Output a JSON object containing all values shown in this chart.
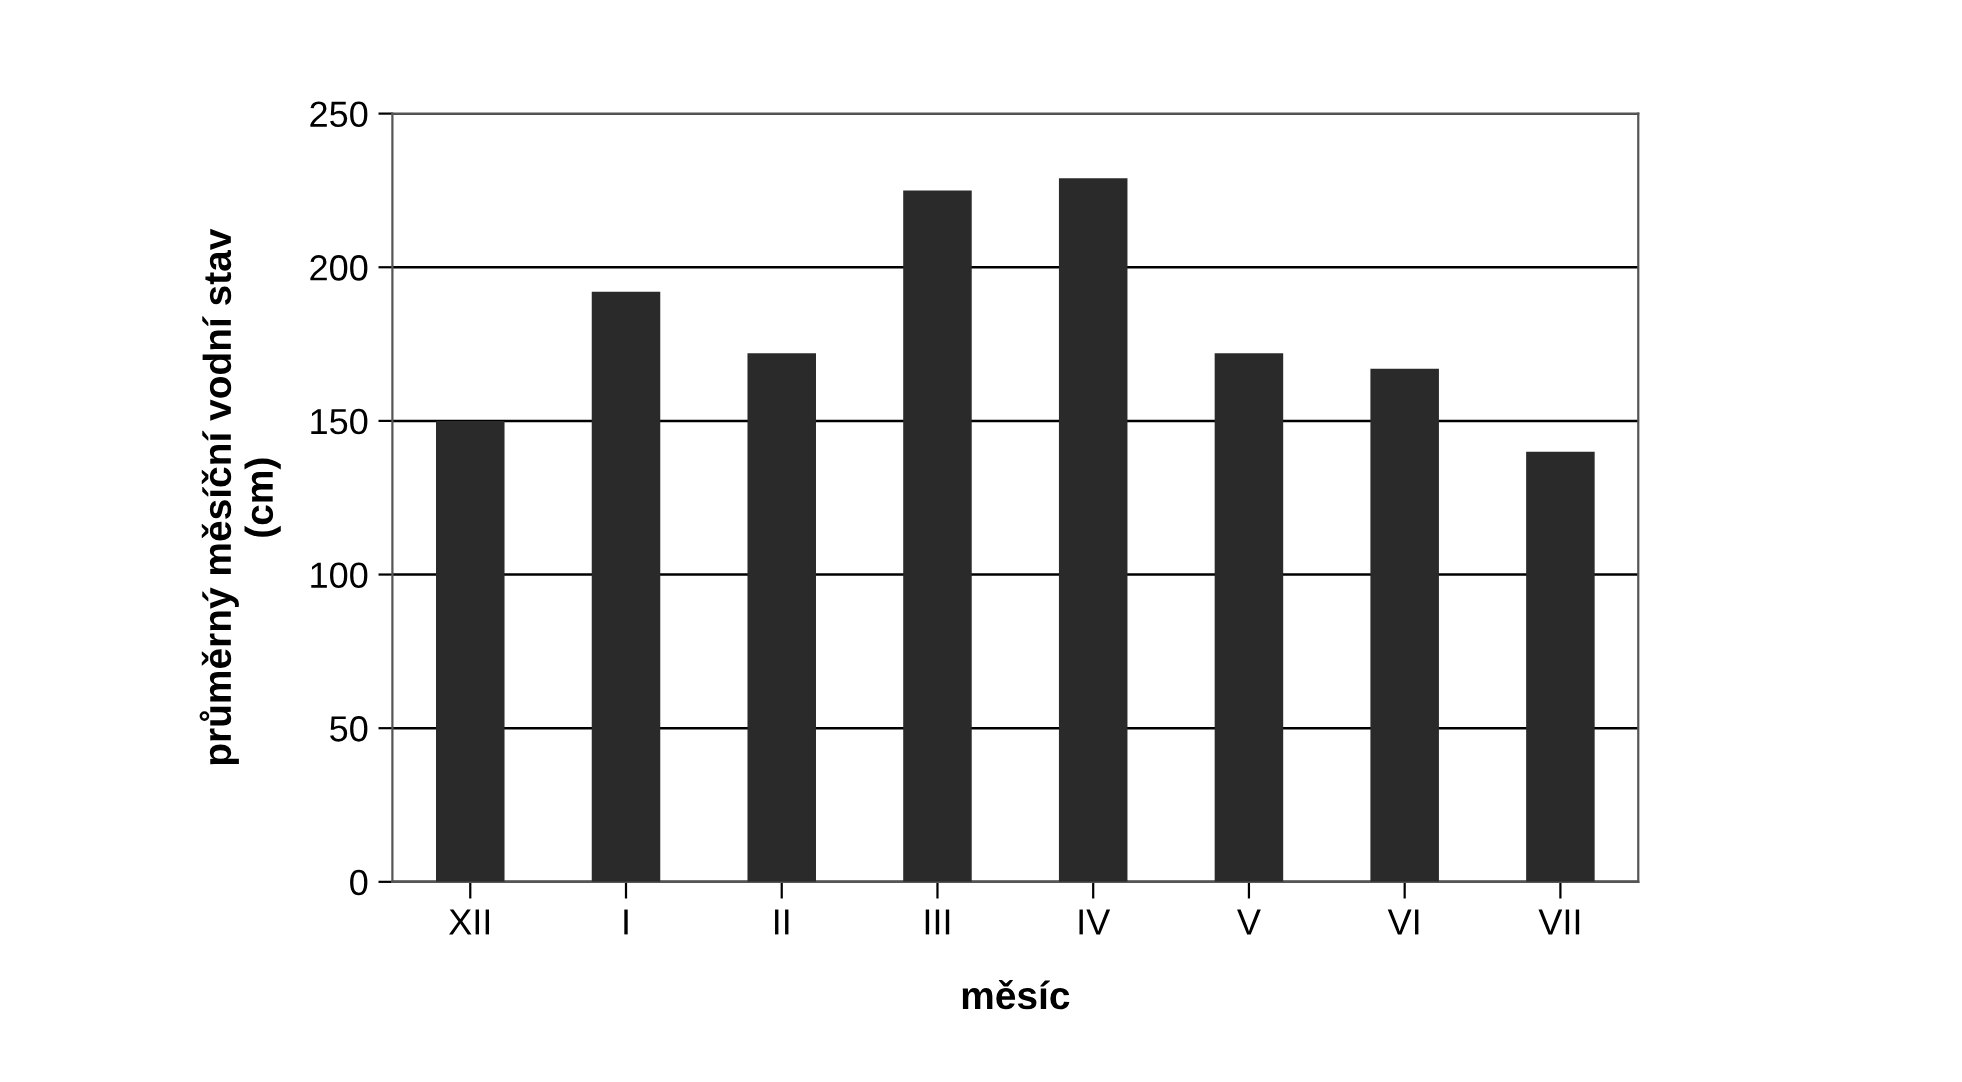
{
  "chart_data": {
    "type": "bar",
    "categories": [
      "XII",
      "I",
      "II",
      "III",
      "IV",
      "V",
      "VI",
      "VII"
    ],
    "values": [
      150,
      192,
      172,
      225,
      229,
      172,
      167,
      140
    ],
    "color": "#2a2a2a",
    "xlabel": "měsíc",
    "ylabel": "průměrný měsíční vodní stav\n(cm)",
    "ylim": [
      0,
      250
    ],
    "yticks": [
      0,
      50,
      100,
      150,
      200,
      250
    ],
    "grid": "y"
  }
}
